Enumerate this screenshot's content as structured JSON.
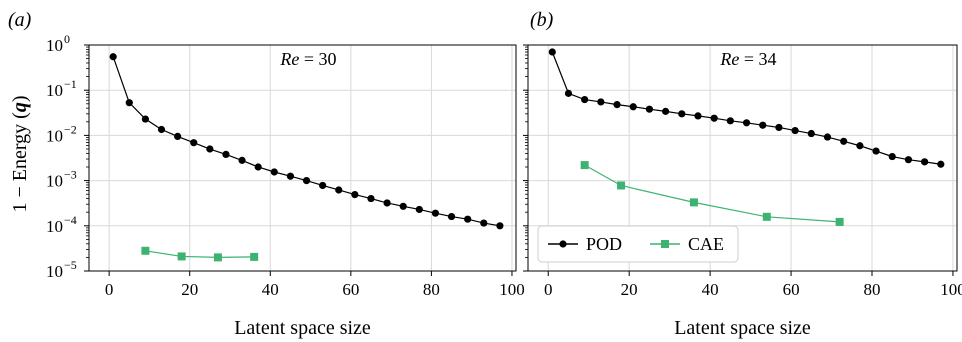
{
  "figure": {
    "ylabel_prefix": "1 − Energy (",
    "ylabel_symbol": "q",
    "ylabel_suffix": ")",
    "colors": {
      "pod": "#000000",
      "cae": "#3cb371",
      "grid": "#d9d9d9",
      "frame": "#000000"
    }
  },
  "chart_data": [
    {
      "type": "line",
      "panel_label": "(a)",
      "annotation": "Re = 30",
      "annotation_italic": "Re",
      "annotation_rest": " = 30",
      "xlabel": "Latent space size",
      "ylabel": "1 − Energy (q)",
      "xlim": [
        -5,
        101
      ],
      "ylim": [
        1e-05,
        1
      ],
      "yscale": "log",
      "grid": true,
      "xticks": [
        "0",
        "20",
        "40",
        "60",
        "80",
        "100"
      ],
      "yticks": [
        {
          "base": "10",
          "exp": "0"
        },
        {
          "base": "10",
          "exp": "−1"
        },
        {
          "base": "10",
          "exp": "−2"
        },
        {
          "base": "10",
          "exp": "−3"
        },
        {
          "base": "10",
          "exp": "−4"
        },
        {
          "base": "10",
          "exp": "−5"
        }
      ],
      "series": [
        {
          "name": "POD",
          "marker": "circle",
          "x": [
            1,
            5,
            9,
            13,
            17,
            21,
            25,
            29,
            33,
            37,
            41,
            45,
            49,
            53,
            57,
            61,
            65,
            69,
            73,
            77,
            81,
            85,
            89,
            93,
            97
          ],
          "y": [
            0.55,
            0.053,
            0.023,
            0.0135,
            0.0095,
            0.0069,
            0.005,
            0.0038,
            0.0028,
            0.002,
            0.00155,
            0.00125,
            0.001,
            0.00078,
            0.00062,
            0.00049,
            0.0004,
            0.00032,
            0.00027,
            0.00023,
            0.00019,
            0.00016,
            0.00014,
            0.000115,
            0.0001
          ]
        },
        {
          "name": "CAE",
          "marker": "square",
          "x": [
            9,
            18,
            27,
            36
          ],
          "y": [
            2.8e-05,
            2.1e-05,
            2e-05,
            2.05e-05
          ]
        }
      ]
    },
    {
      "type": "line",
      "panel_label": "(b)",
      "annotation": "Re = 34",
      "annotation_italic": "Re",
      "annotation_rest": " = 34",
      "xlabel": "Latent space size",
      "ylabel": "",
      "xlim": [
        -5,
        101
      ],
      "ylim": [
        1e-05,
        1
      ],
      "yscale": "log",
      "grid": true,
      "xticks": [
        "0",
        "20",
        "40",
        "60",
        "80",
        "100"
      ],
      "legend": {
        "placement": "lower-left",
        "entries": [
          "POD",
          "CAE"
        ]
      },
      "series": [
        {
          "name": "POD",
          "marker": "circle",
          "x": [
            1,
            5,
            9,
            13,
            17,
            21,
            25,
            29,
            33,
            37,
            41,
            45,
            49,
            53,
            57,
            61,
            65,
            69,
            73,
            77,
            81,
            85,
            89,
            93,
            97
          ],
          "y": [
            0.7,
            0.085,
            0.062,
            0.055,
            0.048,
            0.043,
            0.038,
            0.034,
            0.03,
            0.027,
            0.024,
            0.021,
            0.019,
            0.0168,
            0.015,
            0.0128,
            0.011,
            0.0092,
            0.0074,
            0.0059,
            0.0045,
            0.0034,
            0.0029,
            0.0026,
            0.0023
          ]
        },
        {
          "name": "CAE",
          "marker": "square",
          "x": [
            9,
            18,
            36,
            54,
            72
          ],
          "y": [
            0.0022,
            0.00078,
            0.00033,
            0.000158,
            0.000122
          ]
        }
      ]
    }
  ]
}
